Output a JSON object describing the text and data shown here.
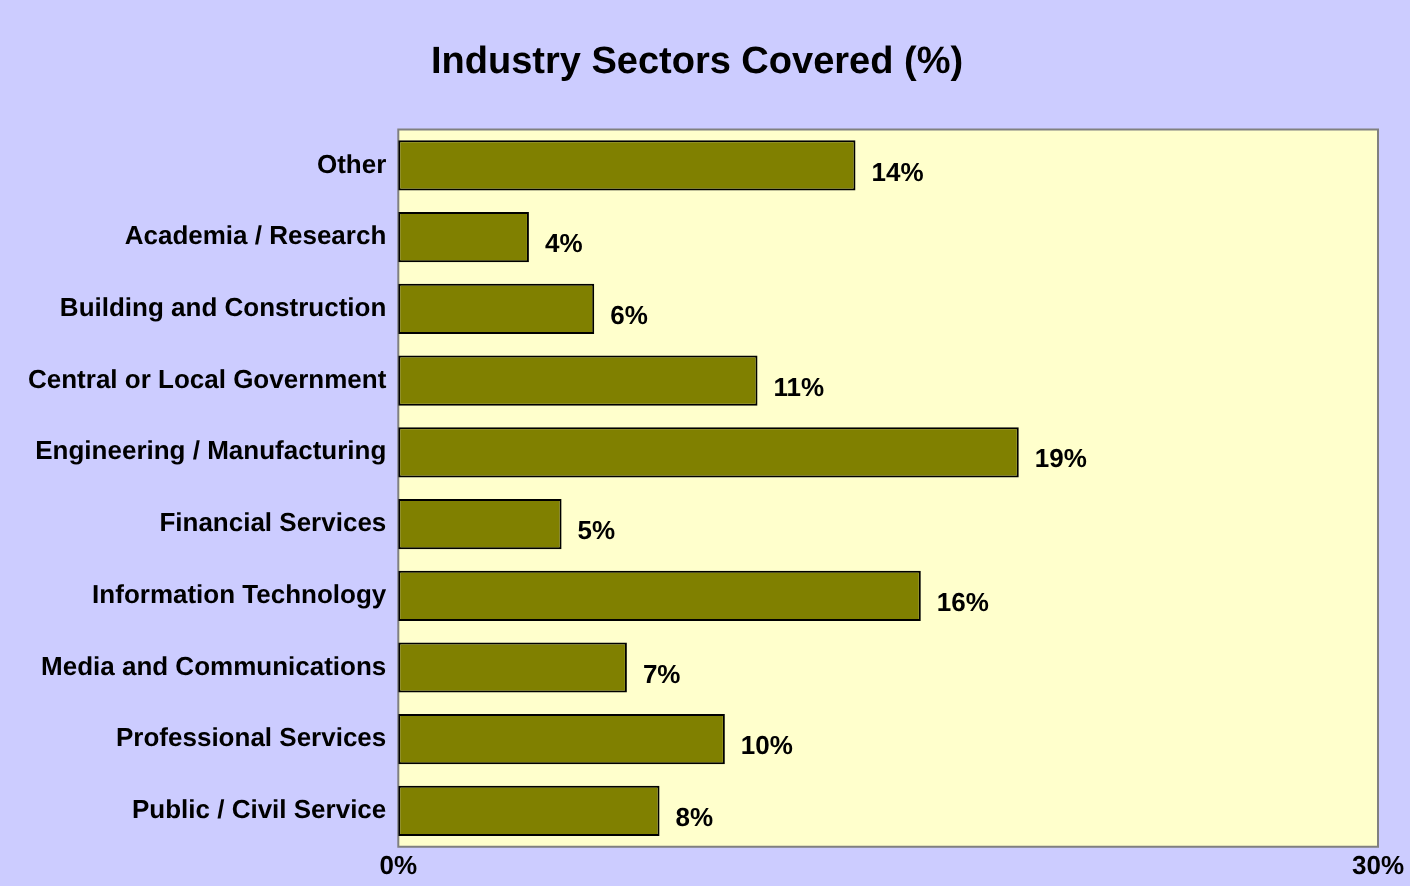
{
  "chart_data": {
    "type": "bar",
    "orientation": "horizontal",
    "title": "Industry Sectors Covered (%)",
    "categories": [
      "Other",
      "Academia / Research",
      "Building and Construction",
      "Central or Local Government",
      "Engineering / Manufacturing",
      "Financial Services",
      "Information Technology",
      "Media and Communications",
      "Professional Services",
      "Public / Civil Service"
    ],
    "values": [
      14,
      4,
      6,
      11,
      19,
      5,
      16,
      7,
      10,
      8
    ],
    "value_labels": [
      "14%",
      "4%",
      "6%",
      "11%",
      "19%",
      "5%",
      "16%",
      "7%",
      "10%",
      "8%"
    ],
    "color": "#808000",
    "xlim": [
      0,
      30
    ],
    "xticks": [
      {
        "value": 0,
        "label": "0%"
      },
      {
        "value": 30,
        "label": "30%"
      }
    ],
    "grid": false,
    "legend": false
  }
}
